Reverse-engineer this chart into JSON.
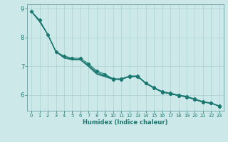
{
  "xlabel": "Humidex (Indice chaleur)",
  "bg_color": "#cce8e8",
  "grid_color": "#aad0d0",
  "line_color": "#1a7870",
  "xlim": [
    -0.5,
    23.5
  ],
  "ylim": [
    5.45,
    9.15
  ],
  "yticks": [
    6,
    7,
    8,
    9
  ],
  "xticks": [
    0,
    1,
    2,
    3,
    4,
    5,
    6,
    7,
    8,
    9,
    10,
    11,
    12,
    13,
    14,
    15,
    16,
    17,
    18,
    19,
    20,
    21,
    22,
    23
  ],
  "lines": [
    [
      8.9,
      8.6,
      8.1,
      7.5,
      7.35,
      7.28,
      7.27,
      7.08,
      6.83,
      6.72,
      6.56,
      6.56,
      6.66,
      6.66,
      6.42,
      6.26,
      6.12,
      6.06,
      6.0,
      5.95,
      5.86,
      5.77,
      5.72,
      5.62
    ],
    [
      8.9,
      8.55,
      8.1,
      7.5,
      7.3,
      7.25,
      7.22,
      7.03,
      6.78,
      6.68,
      6.55,
      6.55,
      6.64,
      6.64,
      6.4,
      6.24,
      6.1,
      6.04,
      5.98,
      5.93,
      5.84,
      5.75,
      5.71,
      5.61
    ],
    [
      8.9,
      8.55,
      8.1,
      7.5,
      7.3,
      7.25,
      7.22,
      7.0,
      6.74,
      6.65,
      6.54,
      6.54,
      6.64,
      6.64,
      6.4,
      6.24,
      6.1,
      6.04,
      5.98,
      5.93,
      5.84,
      5.75,
      5.71,
      5.61
    ],
    [
      8.9,
      8.55,
      8.1,
      7.5,
      7.28,
      7.22,
      7.22,
      6.98,
      6.72,
      6.63,
      6.54,
      6.54,
      6.64,
      6.64,
      6.4,
      6.24,
      6.1,
      6.04,
      5.98,
      5.93,
      5.84,
      5.75,
      5.71,
      5.61
    ]
  ],
  "marker_lines": [
    0,
    1,
    2,
    3
  ],
  "marker_x": [
    [
      0,
      1,
      2,
      3,
      4,
      5,
      6,
      7,
      8,
      9,
      10,
      11,
      12,
      13,
      14,
      15,
      16,
      17,
      18,
      19,
      20,
      21,
      22,
      23
    ],
    [],
    [],
    []
  ]
}
